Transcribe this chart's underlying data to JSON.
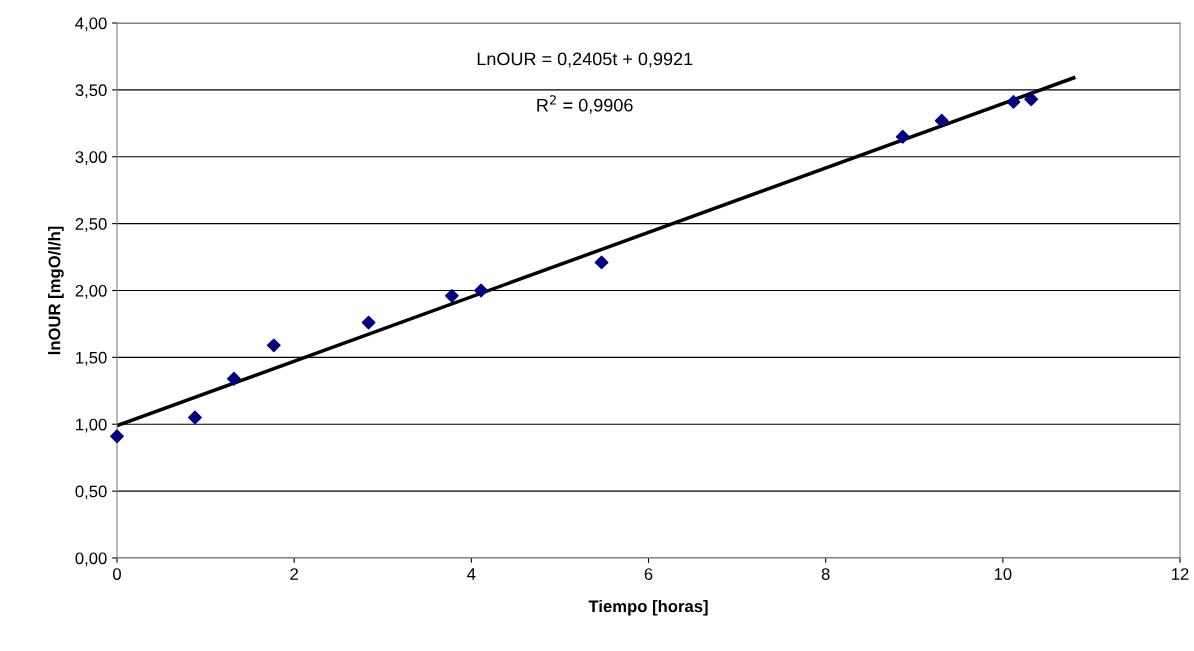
{
  "chart_data": {
    "type": "scatter",
    "xlabel": "Tiempo [horas]",
    "ylabel": "lnOUR [mgO/l/h]",
    "series": [
      {
        "color": "#000080",
        "marker": "diamond",
        "x": [
          0,
          0.88,
          1.32,
          1.77,
          2.84,
          3.78,
          4.11,
          5.47,
          8.87,
          9.31,
          10.12,
          10.32
        ],
        "values": [
          0.91,
          1.05,
          1.34,
          1.59,
          1.76,
          1.96,
          2.0,
          2.21,
          3.15,
          3.27,
          3.41,
          3.43
        ]
      },
      {
        "type": "line",
        "color": "#000000",
        "marker": "none",
        "x": [
          0,
          10.8
        ],
        "values": [
          0.99,
          3.59
        ]
      }
    ],
    "annotations": [
      "LnOUR = 0,2405t + 0,9921",
      "R$^{2}$ = 0,9906"
    ],
    "xlim": [
      0,
      12
    ],
    "xticks": [
      0,
      2,
      4,
      6,
      8,
      10,
      12
    ],
    "ylim": [
      0,
      4
    ],
    "yticks": [
      {
        "value": 0,
        "label": "0,00"
      },
      {
        "value": 0.5,
        "label": "0,50"
      },
      {
        "value": 1,
        "label": "1,00"
      },
      {
        "value": 1.5,
        "label": "1,50"
      },
      {
        "value": 2,
        "label": "2,00"
      },
      {
        "value": 2.5,
        "label": "2,50"
      },
      {
        "value": 3,
        "label": "3,00"
      },
      {
        "value": 3.5,
        "label": "3,50"
      },
      {
        "value": 4,
        "label": "4,00"
      }
    ],
    "grid": "y",
    "legend": false
  }
}
